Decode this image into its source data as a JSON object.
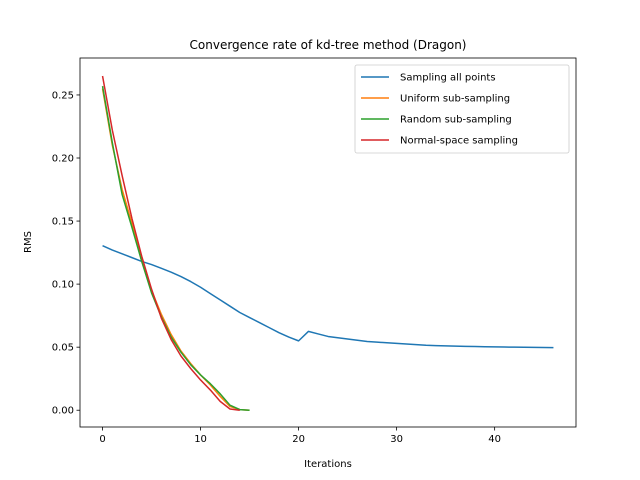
{
  "chart_data": {
    "type": "line",
    "title": "Convergence rate of kd-tree method (Dragon)",
    "xlabel": "Iterations",
    "ylabel": "RMS",
    "xlim": [
      -2.3,
      48.3
    ],
    "ylim": [
      -0.0133,
      0.2793
    ],
    "xticks": [
      0,
      10,
      20,
      30,
      40
    ],
    "yticks": [
      0.0,
      0.05,
      0.1,
      0.15,
      0.2,
      0.25
    ],
    "ytick_labels": [
      "0.00",
      "0.05",
      "0.10",
      "0.15",
      "0.20",
      "0.25"
    ],
    "grid": false,
    "legend_position": "top-right",
    "series": [
      {
        "name": "Sampling all points",
        "color": "#1f77b4",
        "x": [
          0,
          1,
          2,
          3,
          4,
          5,
          6,
          7,
          8,
          9,
          10,
          11,
          12,
          13,
          14,
          15,
          16,
          17,
          18,
          19,
          20,
          21,
          22,
          23,
          24,
          25,
          26,
          27,
          28,
          29,
          30,
          31,
          32,
          33,
          34,
          35,
          36,
          37,
          38,
          39,
          40,
          41,
          42,
          43,
          44,
          45,
          46
        ],
        "y": [
          0.1305,
          0.127,
          0.124,
          0.121,
          0.118,
          0.1155,
          0.1125,
          0.1095,
          0.106,
          0.102,
          0.0975,
          0.0925,
          0.0875,
          0.0825,
          0.0775,
          0.0735,
          0.0695,
          0.0655,
          0.0615,
          0.058,
          0.055,
          0.0625,
          0.0605,
          0.0585,
          0.0575,
          0.0565,
          0.0555,
          0.0545,
          0.054,
          0.0535,
          0.053,
          0.0525,
          0.052,
          0.0515,
          0.0512,
          0.051,
          0.0508,
          0.0506,
          0.0505,
          0.0503,
          0.0502,
          0.0501,
          0.05,
          0.0499,
          0.0498,
          0.0497,
          0.0496
        ]
      },
      {
        "name": "Uniform sub-sampling",
        "color": "#ff7f0e",
        "x": [
          0,
          1,
          2,
          3,
          4,
          5,
          6,
          7,
          8,
          9,
          10,
          11,
          12,
          13,
          14,
          15
        ],
        "y": [
          0.255,
          0.21,
          0.175,
          0.148,
          0.118,
          0.095,
          0.076,
          0.06,
          0.047,
          0.037,
          0.028,
          0.02,
          0.011,
          0.003,
          0.0005,
          0.0
        ]
      },
      {
        "name": "Random sub-sampling",
        "color": "#2ca02c",
        "x": [
          0,
          1,
          2,
          3,
          4,
          5,
          6,
          7,
          8,
          9,
          10,
          11,
          12,
          13,
          14,
          15
        ],
        "y": [
          0.257,
          0.212,
          0.171,
          0.145,
          0.118,
          0.093,
          0.074,
          0.058,
          0.046,
          0.036,
          0.028,
          0.021,
          0.013,
          0.004,
          0.0005,
          0.0
        ]
      },
      {
        "name": "Normal-space sampling",
        "color": "#d62728",
        "x": [
          0,
          1,
          2,
          3,
          4,
          5,
          6,
          7,
          8,
          9,
          10,
          11,
          12,
          13,
          14
        ],
        "y": [
          0.265,
          0.222,
          0.186,
          0.152,
          0.122,
          0.096,
          0.073,
          0.056,
          0.043,
          0.033,
          0.024,
          0.016,
          0.007,
          0.001,
          0.0
        ]
      }
    ]
  }
}
